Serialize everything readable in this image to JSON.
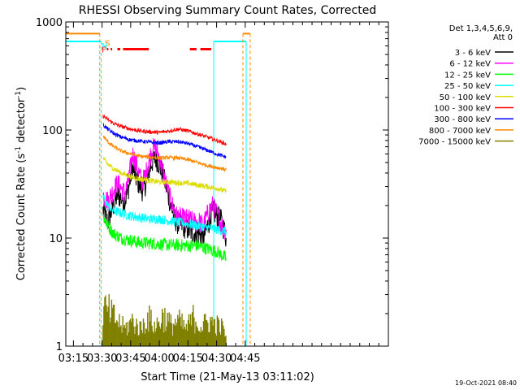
{
  "chart_data": {
    "type": "line",
    "title": "RHESSI Observing Summary Count Rates, Corrected",
    "xlabel": "Start Time (21-May-13 03:11:02)",
    "ylabel": "Corrected Count Rate (s⁻¹ detector⁻¹)",
    "ylabel_base": "Corrected Count Rate (s",
    "ylabel_sup1": "-1",
    "ylabel_mid": " detector",
    "ylabel_sup2": "-1",
    "ylabel_end": ")",
    "yscale": "log",
    "ylim": [
      1,
      1000
    ],
    "xlim_minutes": [
      191,
      360
    ],
    "x_tick_labels": [
      "03:15",
      "03:30",
      "03:45",
      "04:00",
      "04:15",
      "04:30",
      "04:45"
    ],
    "x_ticks_minutes": [
      195,
      210,
      225,
      240,
      255,
      270,
      285
    ],
    "y_tick_labels": [
      "1",
      "10",
      "100",
      "1000"
    ],
    "y_ticks": [
      1,
      10,
      100,
      1000
    ],
    "legend_header": [
      "Det 1,3,4,5,6,9,",
      "Att 0"
    ],
    "legend_position": "right",
    "series": [
      {
        "name": "3 - 6 keV",
        "color": "#000000",
        "points": [
          [
            210.5,
            18
          ],
          [
            213,
            14
          ],
          [
            216,
            20
          ],
          [
            218,
            25
          ],
          [
            222,
            22
          ],
          [
            224,
            30
          ],
          [
            226,
            45
          ],
          [
            228,
            35
          ],
          [
            231,
            28
          ],
          [
            233,
            32
          ],
          [
            236,
            50
          ],
          [
            238,
            55
          ],
          [
            240,
            48
          ],
          [
            242,
            38
          ],
          [
            244,
            28
          ],
          [
            246,
            20
          ],
          [
            249,
            14
          ],
          [
            252,
            13
          ],
          [
            255,
            12
          ],
          [
            258,
            11
          ],
          [
            261,
            11
          ],
          [
            263,
            10
          ],
          [
            266,
            14
          ],
          [
            268,
            18
          ],
          [
            270,
            16
          ],
          [
            272,
            15
          ],
          [
            274,
            12
          ],
          [
            275,
            10
          ]
        ]
      },
      {
        "name": "6 - 12 keV",
        "color": "#ff00ff",
        "points": [
          [
            210.5,
            25
          ],
          [
            213,
            22
          ],
          [
            216,
            28
          ],
          [
            218,
            32
          ],
          [
            222,
            26
          ],
          [
            224,
            35
          ],
          [
            226,
            60
          ],
          [
            228,
            48
          ],
          [
            231,
            32
          ],
          [
            233,
            40
          ],
          [
            236,
            65
          ],
          [
            238,
            70
          ],
          [
            240,
            55
          ],
          [
            242,
            40
          ],
          [
            244,
            30
          ],
          [
            246,
            22
          ],
          [
            249,
            16
          ],
          [
            252,
            15
          ],
          [
            255,
            15
          ],
          [
            258,
            14
          ],
          [
            261,
            14
          ],
          [
            263,
            13
          ],
          [
            266,
            18
          ],
          [
            268,
            20
          ],
          [
            270,
            17
          ],
          [
            272,
            14
          ],
          [
            274,
            12
          ],
          [
            275,
            12
          ]
        ]
      },
      {
        "name": "12 - 25 keV",
        "color": "#00ff00",
        "points": [
          [
            210.5,
            16
          ],
          [
            213,
            13
          ],
          [
            216,
            11
          ],
          [
            220,
            10
          ],
          [
            225,
            9.5
          ],
          [
            230,
            9
          ],
          [
            235,
            9
          ],
          [
            240,
            8.8
          ],
          [
            245,
            8.6
          ],
          [
            250,
            8.6
          ],
          [
            255,
            8.5
          ],
          [
            260,
            8.5
          ],
          [
            265,
            8
          ],
          [
            270,
            7.5
          ],
          [
            275,
            6.5
          ]
        ]
      },
      {
        "name": "25 - 50 keV",
        "color": "#00ffff",
        "points": [
          [
            210.5,
            24
          ],
          [
            213,
            20
          ],
          [
            216,
            18
          ],
          [
            220,
            17
          ],
          [
            225,
            16
          ],
          [
            230,
            15.5
          ],
          [
            235,
            15
          ],
          [
            240,
            15
          ],
          [
            245,
            14.5
          ],
          [
            250,
            14
          ],
          [
            255,
            13.5
          ],
          [
            260,
            13
          ],
          [
            265,
            12.5
          ],
          [
            270,
            12
          ],
          [
            275,
            11.5
          ]
        ]
      },
      {
        "name": "50 - 100 keV",
        "color": "#dddd00",
        "points": [
          [
            210.5,
            55
          ],
          [
            213,
            48
          ],
          [
            216,
            44
          ],
          [
            220,
            40
          ],
          [
            225,
            37
          ],
          [
            230,
            35
          ],
          [
            235,
            34
          ],
          [
            240,
            33
          ],
          [
            245,
            33
          ],
          [
            250,
            32.5
          ],
          [
            255,
            32
          ],
          [
            260,
            31
          ],
          [
            265,
            30
          ],
          [
            270,
            29
          ],
          [
            275,
            27
          ]
        ]
      },
      {
        "name": "100 - 300 keV",
        "color": "#ff0000",
        "points": [
          [
            210.5,
            135
          ],
          [
            213,
            125
          ],
          [
            216,
            115
          ],
          [
            220,
            108
          ],
          [
            225,
            102
          ],
          [
            230,
            98
          ],
          [
            235,
            96
          ],
          [
            240,
            95
          ],
          [
            245,
            98
          ],
          [
            250,
            102
          ],
          [
            255,
            98
          ],
          [
            260,
            92
          ],
          [
            265,
            86
          ],
          [
            270,
            80
          ],
          [
            275,
            74
          ]
        ]
      },
      {
        "name": "300 - 800 keV",
        "color": "#0000ff",
        "points": [
          [
            210.5,
            112
          ],
          [
            213,
            102
          ],
          [
            216,
            93
          ],
          [
            220,
            86
          ],
          [
            225,
            81
          ],
          [
            230,
            79
          ],
          [
            235,
            77
          ],
          [
            240,
            76
          ],
          [
            245,
            78
          ],
          [
            250,
            78
          ],
          [
            255,
            75
          ],
          [
            260,
            70
          ],
          [
            265,
            65
          ],
          [
            270,
            60
          ],
          [
            275,
            56
          ]
        ]
      },
      {
        "name": "800 - 7000 keV",
        "color": "#ff8800",
        "points": [
          [
            210.5,
            88
          ],
          [
            213,
            78
          ],
          [
            216,
            70
          ],
          [
            220,
            64
          ],
          [
            225,
            60
          ],
          [
            230,
            57
          ],
          [
            235,
            56
          ],
          [
            240,
            55
          ],
          [
            245,
            55.5
          ],
          [
            250,
            55
          ],
          [
            255,
            53
          ],
          [
            260,
            50
          ],
          [
            265,
            47
          ],
          [
            270,
            45
          ],
          [
            275,
            43
          ]
        ]
      },
      {
        "name": "7000 - 15000 keV",
        "color": "#808000",
        "points": [
          [
            210.5,
            2.8
          ],
          [
            214,
            2.5
          ],
          [
            218,
            2
          ],
          [
            222,
            1.6
          ],
          [
            226,
            2
          ],
          [
            230,
            1.6
          ],
          [
            234,
            2.2
          ],
          [
            238,
            1.7
          ],
          [
            242,
            2.3
          ],
          [
            246,
            1.8
          ],
          [
            250,
            2
          ],
          [
            254,
            1.6
          ],
          [
            258,
            2.2
          ],
          [
            262,
            1.7
          ],
          [
            266,
            2
          ],
          [
            270,
            1.8
          ],
          [
            274,
            1.6
          ],
          [
            275,
            1.2
          ]
        ]
      }
    ],
    "night_periods_minutes": [
      [
        191,
        209.5
      ],
      [
        268.5,
        285.5
      ]
    ],
    "saa_periods_minutes": [
      [
        191,
        208.8
      ],
      [
        283.8,
        287.6
      ]
    ],
    "flare_segments_minutes": [
      [
        212.5,
        213.3
      ],
      [
        214.5,
        215.3
      ],
      [
        218,
        219.5
      ],
      [
        221,
        234.5
      ],
      [
        256,
        259.5
      ],
      [
        261.5,
        267.2
      ]
    ],
    "markers": {
      "S": "S",
      "N": "N",
      "F": "F"
    },
    "timestamp": "19-Oct-2021 08:40"
  }
}
